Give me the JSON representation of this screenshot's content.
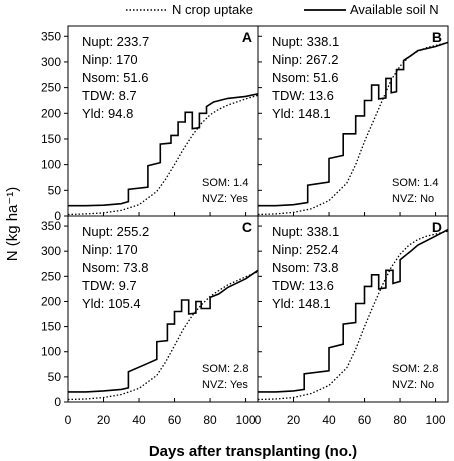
{
  "legend": {
    "items": [
      {
        "label": "N crop uptake",
        "style": "dotted"
      },
      {
        "label": "Available soil N",
        "style": "solid"
      }
    ],
    "placement": "top-center"
  },
  "chart_data": {
    "type": "line",
    "ylabel": "N (kg ha⁻¹)",
    "xlabel": "Days after transplanting (no.)",
    "xlim": [
      0,
      107
    ],
    "ylim": [
      0,
      370
    ],
    "xticks": [
      0,
      20,
      40,
      60,
      80,
      100
    ],
    "yticks": [
      0,
      50,
      100,
      150,
      200,
      250,
      300,
      350
    ],
    "grid": false,
    "panels": [
      {
        "letter": "A",
        "stats": [
          "Nupt: 233.7",
          "Ninp: 170",
          "Nsom: 51.6",
          "TDW: 8.7",
          "Yld: 94.8"
        ],
        "notes": [
          "SOM: 1.4",
          "NVZ: Yes"
        ],
        "series": [
          {
            "name": "N crop uptake",
            "style": "dotted",
            "x": [
              0,
              10,
              20,
              30,
              40,
              50,
              55,
              60,
              65,
              70,
              75,
              80,
              85,
              90,
              95,
              100,
              107
            ],
            "y": [
              3,
              4,
              6,
              11,
              22,
              48,
              72,
              100,
              130,
              157,
              180,
              197,
              208,
              216,
              222,
              228,
              235
            ]
          },
          {
            "name": "Available soil N",
            "style": "solid",
            "x": [
              0,
              10,
              20,
              30,
              34,
              34,
              45,
              45,
              52,
              52,
              58,
              58,
              62,
              62,
              66,
              66,
              70,
              70,
              74,
              74,
              78,
              78,
              82,
              90,
              100,
              107
            ],
            "y": [
              20,
              20,
              21,
              24,
              28,
              52,
              56,
              98,
              104,
              140,
              142,
              157,
              157,
              183,
              183,
              202,
              202,
              170,
              172,
              200,
              200,
              213,
              222,
              229,
              233,
              238
            ]
          }
        ]
      },
      {
        "letter": "B",
        "stats": [
          "Nupt: 338.1",
          "Ninp: 267.2",
          "Nsom: 51.6",
          "TDW: 13.6",
          "Yld: 148.1"
        ],
        "notes": [
          "SOM: 1.4",
          "NVZ: No"
        ],
        "series": [
          {
            "name": "N crop uptake",
            "style": "dotted",
            "x": [
              0,
              10,
              20,
              30,
              40,
              50,
              55,
              60,
              65,
              70,
              75,
              80,
              85,
              90,
              95,
              100,
              107
            ],
            "y": [
              3,
              4,
              7,
              14,
              30,
              64,
              100,
              145,
              185,
              225,
              265,
              292,
              310,
              321,
              328,
              332,
              338
            ]
          },
          {
            "name": "Available soil N",
            "style": "solid",
            "x": [
              0,
              10,
              20,
              28,
              28,
              40,
              40,
              48,
              48,
              55,
              55,
              60,
              60,
              64,
              64,
              68,
              68,
              72,
              72,
              75,
              75,
              78,
              78,
              82,
              82,
              86,
              90,
              100,
              107
            ],
            "y": [
              20,
              20,
              22,
              26,
              60,
              66,
              112,
              118,
              160,
              160,
              195,
              195,
              225,
              225,
              255,
              255,
              228,
              230,
              268,
              268,
              240,
              242,
              285,
              285,
              303,
              312,
              322,
              330,
              338
            ]
          }
        ]
      },
      {
        "letter": "C",
        "stats": [
          "Nupt: 255.2",
          "Ninp: 170",
          "Nsom: 73.8",
          "TDW: 9.7",
          "Yld: 105.4"
        ],
        "notes": [
          "SOM: 2.8",
          "NVZ: Yes"
        ],
        "series": [
          {
            "name": "N crop uptake",
            "style": "dotted",
            "x": [
              0,
              10,
              20,
              30,
              40,
              50,
              55,
              60,
              65,
              70,
              75,
              80,
              85,
              90,
              95,
              100,
              107
            ],
            "y": [
              5,
              6,
              9,
              15,
              27,
              53,
              80,
              112,
              145,
              172,
              193,
              210,
              222,
              233,
              241,
              249,
              259
            ]
          },
          {
            "name": "Available soil N",
            "style": "solid",
            "x": [
              0,
              10,
              20,
              30,
              34,
              34,
              45,
              50,
              50,
              56,
              56,
              60,
              60,
              64,
              64,
              68,
              68,
              72,
              72,
              75,
              75,
              80,
              80,
              85,
              90,
              100,
              107
            ],
            "y": [
              20,
              20,
              22,
              25,
              28,
              60,
              77,
              85,
              120,
              122,
              155,
              155,
              180,
              180,
              203,
              203,
              175,
              177,
              200,
              200,
              186,
              186,
              208,
              215,
              228,
              245,
              262
            ]
          }
        ]
      },
      {
        "letter": "D",
        "stats": [
          "Nupt: 338.1",
          "Ninp: 252.4",
          "Nsom: 73.8",
          "TDW: 13.6",
          "Yld: 148.1"
        ],
        "notes": [
          "SOM: 2.8",
          "NVZ: No"
        ],
        "series": [
          {
            "name": "N crop uptake",
            "style": "dotted",
            "x": [
              0,
              10,
              20,
              30,
              40,
              50,
              55,
              60,
              65,
              70,
              75,
              80,
              85,
              90,
              95,
              100,
              107
            ],
            "y": [
              5,
              6,
              9,
              17,
              33,
              68,
              105,
              150,
              192,
              232,
              268,
              294,
              312,
              323,
              330,
              334,
              340
            ]
          },
          {
            "name": "Available soil N",
            "style": "solid",
            "x": [
              0,
              10,
              20,
              26,
              26,
              40,
              40,
              48,
              48,
              55,
              55,
              60,
              60,
              64,
              64,
              68,
              68,
              72,
              72,
              76,
              76,
              80,
              80,
              86,
              90,
              100,
              107
            ],
            "y": [
              20,
              20,
              22,
              25,
              56,
              62,
              108,
              115,
              155,
              158,
              196,
              196,
              230,
              230,
              253,
              253,
              225,
              227,
              262,
              262,
              236,
              240,
              283,
              300,
              312,
              330,
              343
            ]
          }
        ]
      }
    ]
  }
}
